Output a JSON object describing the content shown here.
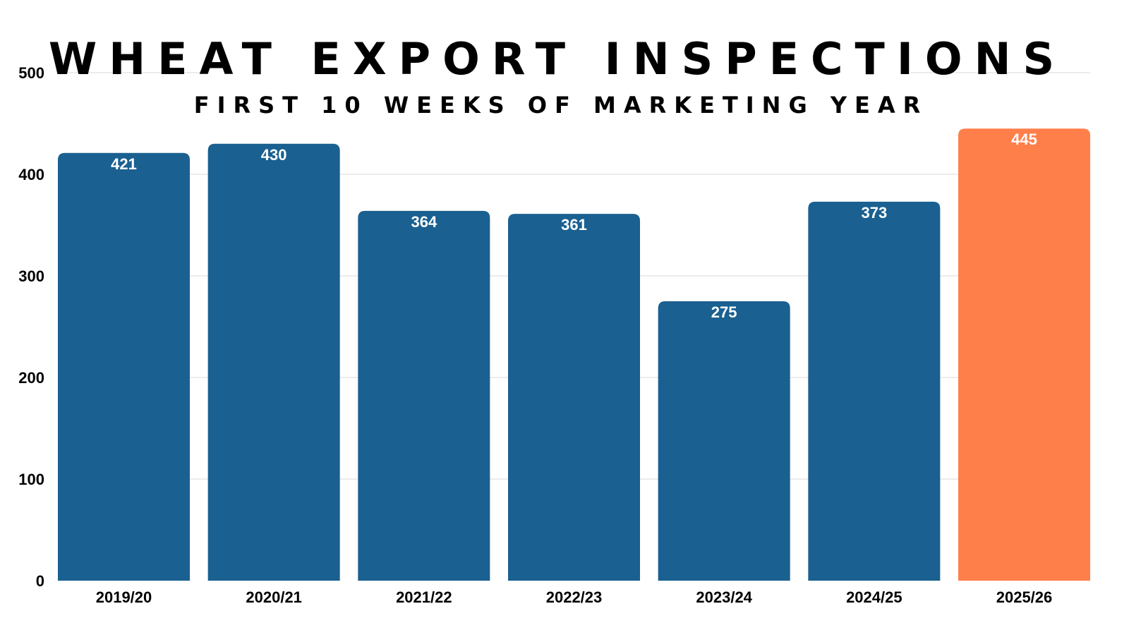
{
  "chart_data": {
    "type": "bar",
    "title": "WHEAT EXPORT INSPECTIONS",
    "subtitle": "FIRST 10 WEEKS OF MARKETING YEAR",
    "categories": [
      "2019/20",
      "2020/21",
      "2021/22",
      "2022/23",
      "2023/24",
      "2024/25",
      "2025/26"
    ],
    "values": [
      421,
      430,
      364,
      361,
      275,
      373,
      445
    ],
    "data_labels": [
      "421",
      "430",
      "364",
      "361",
      "275",
      "373",
      "445"
    ],
    "y_ticks": [
      "0",
      "100",
      "200",
      "300",
      "400",
      "500"
    ],
    "ylim": [
      0,
      500
    ],
    "grid": true,
    "legend": "none",
    "colors": {
      "bar": "#1a6090",
      "highlight_bar": "#ff7f4b",
      "highlight_category": "2025/26",
      "grid": "#d9d9d9"
    }
  }
}
